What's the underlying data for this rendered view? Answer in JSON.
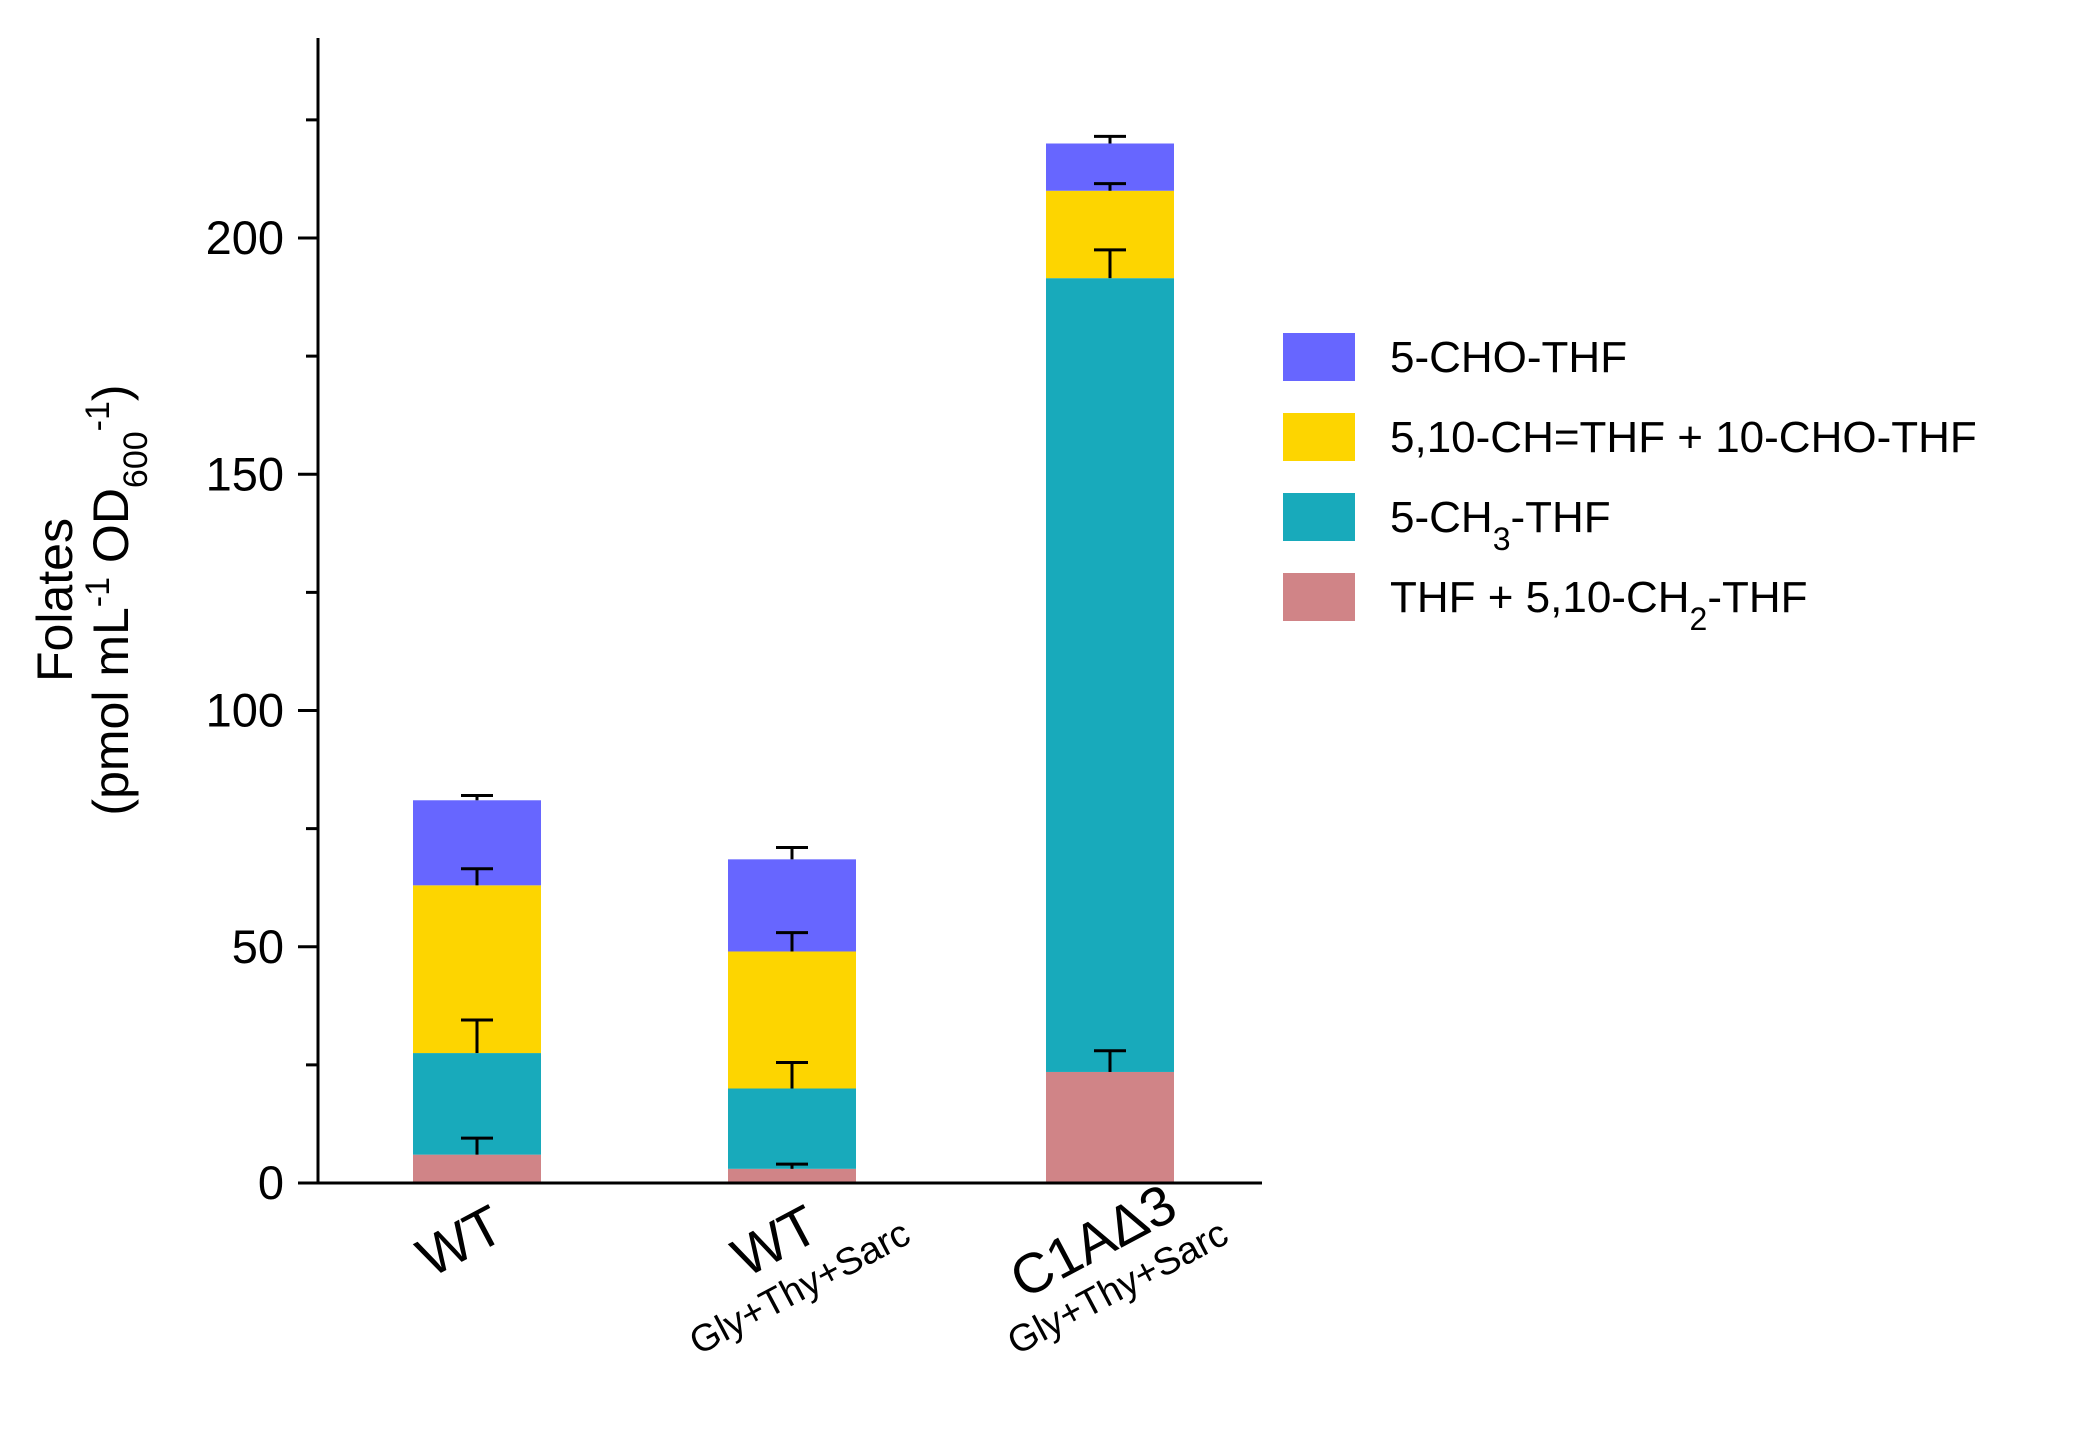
{
  "chart_data": {
    "type": "bar",
    "stacked": true,
    "ylabel_line1": "Folates",
    "ylabel_line2": {
      "open": "(pmol mL",
      "sup1": "-1",
      "mid": " OD",
      "sub": "600",
      "sup2": "-1",
      "close": ")"
    },
    "ylim": [
      0,
      245
    ],
    "yticks": [
      0,
      50,
      100,
      150,
      200
    ],
    "yticks_minor": [
      25,
      75,
      125,
      175,
      225
    ],
    "categories": [
      {
        "label": "WT",
        "sub": ""
      },
      {
        "label": "WT",
        "sub": "Gly+Thy+Sarc"
      },
      {
        "label": "C1AΔ3",
        "sub": "Gly+Thy+Sarc"
      }
    ],
    "series": [
      {
        "key": "thf",
        "color": "#d08487",
        "values": [
          6,
          3,
          23.5
        ],
        "errors": [
          3.5,
          1.0,
          4.5
        ]
      },
      {
        "key": "ch3",
        "color": "#18aabb",
        "values": [
          21.5,
          17,
          168
        ],
        "errors": [
          7,
          5.5,
          6
        ]
      },
      {
        "key": "ch_thf",
        "color": "#fdd500",
        "values": [
          35.5,
          29,
          18.5
        ],
        "errors": [
          3.5,
          4,
          1.5
        ]
      },
      {
        "key": "cho",
        "color": "#6766ff",
        "values": [
          18,
          19.5,
          10
        ],
        "errors": [
          1,
          2.5,
          1.5
        ]
      }
    ],
    "legend": {
      "position": "right",
      "items": [
        {
          "key": "cho",
          "color": "#6766ff",
          "parts": [
            {
              "t": "5-CHO-THF"
            }
          ]
        },
        {
          "key": "ch_thf",
          "color": "#fdd500",
          "parts": [
            {
              "t": "5,10-CH=THF + 10-CHO-THF"
            }
          ]
        },
        {
          "key": "ch3",
          "color": "#18aabb",
          "parts": [
            {
              "t": "5-CH"
            },
            {
              "t": "3",
              "sub": true
            },
            {
              "t": "-THF"
            }
          ]
        },
        {
          "key": "thf",
          "color": "#d08487",
          "parts": [
            {
              "t": "THF + 5,10-CH"
            },
            {
              "t": "2",
              "sub": true
            },
            {
              "t": "-THF"
            }
          ]
        }
      ]
    }
  }
}
